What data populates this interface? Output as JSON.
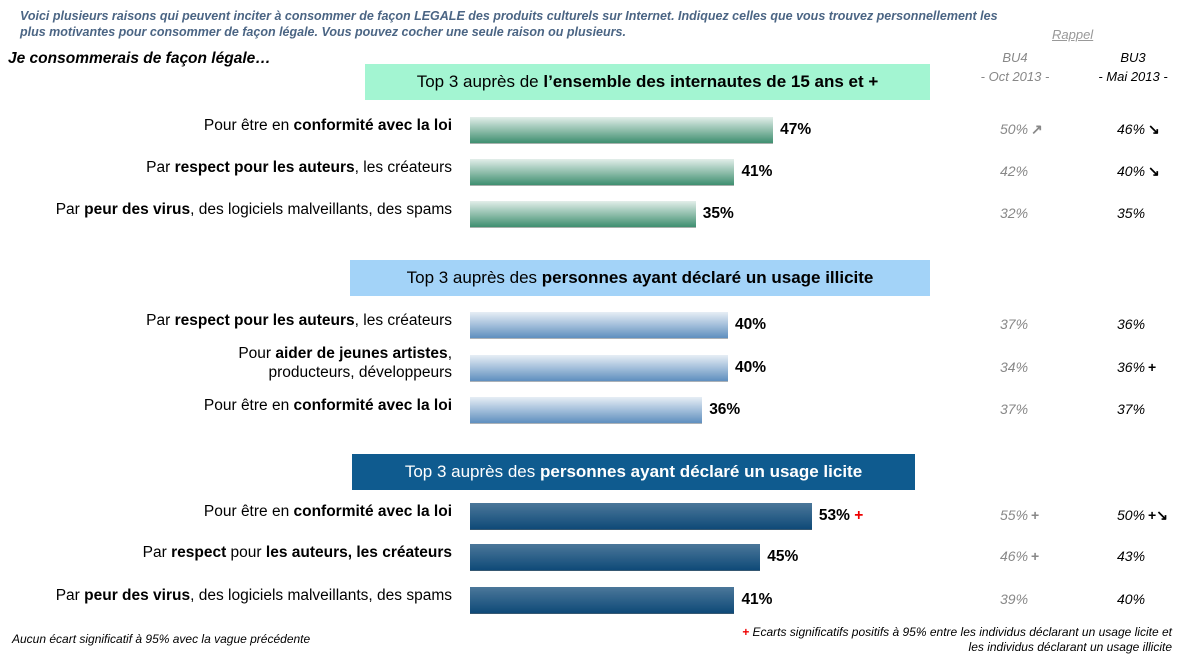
{
  "header": {
    "question": "Voici plusieurs raisons qui peuvent inciter à consommer de façon LEGALE des produits culturels sur Internet. Indiquez celles que vous trouvez personnellement les plus motivantes pour consommer de façon légale. Vous pouvez cocher une seule raison ou plusieurs.",
    "lead": "Je consommerais de façon légale…"
  },
  "recall": {
    "title": "Rappel",
    "bu4": [
      "BU4",
      "- Oct 2013 -"
    ],
    "bu3": [
      "BU3",
      "- Mai 2013 -"
    ]
  },
  "chart_data": [
    {
      "type": "bar",
      "title": [
        "Top 3 auprès de ",
        {
          "text": "l’ensemble des internautes de 15 ans et +",
          "bold": true
        }
      ],
      "title_color": "#a3f5d2",
      "color": "#3f8f70",
      "categories": [
        [
          "Pour être en ",
          {
            "text": "conformité avec la loi",
            "bold": true
          }
        ],
        [
          "Par ",
          {
            "text": "respect pour les auteurs",
            "bold": true
          },
          ", les créateurs"
        ],
        [
          "Par ",
          {
            "text": "peur des virus",
            "bold": true
          },
          ", des logiciels malveillants, des spams"
        ]
      ],
      "values": [
        47,
        41,
        35
      ],
      "value_labels": [
        "47%",
        "41%",
        "35%"
      ],
      "recall_rows": [
        {
          "bu4": "50%",
          "bu4_mark": "↗",
          "bu3": "46%",
          "bu3_mark": "↘"
        },
        {
          "bu4": "42%",
          "bu3": "40%",
          "bu3_mark": "↘"
        },
        {
          "bu4": "32%",
          "bu3": "35%"
        }
      ]
    },
    {
      "type": "bar",
      "title": [
        "Top 3 auprès des ",
        {
          "text": "personnes ayant déclaré un usage illicite",
          "bold": true
        }
      ],
      "title_color": "#a3d3f8",
      "color": "#5f8fbf",
      "categories": [
        [
          "Par ",
          {
            "text": "respect pour les auteurs",
            "bold": true
          },
          ", les créateurs"
        ],
        [
          "Pour ",
          {
            "text": "aider de jeunes artistes",
            "bold": true
          },
          ",\nproducteurs, développeurs"
        ],
        [
          "Pour être en ",
          {
            "text": "conformité avec la loi",
            "bold": true
          }
        ]
      ],
      "values": [
        40,
        40,
        36
      ],
      "value_labels": [
        "40%",
        "40%",
        "36%"
      ],
      "recall_rows": [
        {
          "bu4": "37%",
          "bu3": "36%"
        },
        {
          "bu4": "34%",
          "bu3": "36%",
          "bu3_mark": "+"
        },
        {
          "bu4": "37%",
          "bu3": "37%"
        }
      ]
    },
    {
      "type": "bar",
      "title": [
        "Top 3 auprès des ",
        {
          "text": "personnes ayant déclaré un usage licite",
          "bold": true
        }
      ],
      "title_color": "#0f5b8f",
      "color": "#0f4a78",
      "categories": [
        [
          "Pour être en ",
          {
            "text": "conformité avec la loi",
            "bold": true
          }
        ],
        [
          "Par ",
          {
            "text": "respect",
            "bold": true
          },
          " pour ",
          {
            "text": "les auteurs, les créateurs",
            "bold": true
          }
        ],
        [
          "Par ",
          {
            "text": "peur des virus",
            "bold": true
          },
          ", des logiciels malveillants, des spams"
        ]
      ],
      "values": [
        53,
        45,
        41
      ],
      "value_labels": [
        "53%",
        "45%",
        "41%"
      ],
      "value_flags": [
        "+",
        null,
        null
      ],
      "recall_rows": [
        {
          "bu4": "55%",
          "bu4_mark": "+",
          "bu3": "50%",
          "bu3_mark": "+↘"
        },
        {
          "bu4": "46%",
          "bu4_mark": "+",
          "bu3": "43%"
        },
        {
          "bu4": "39%",
          "bu3": "40%"
        }
      ]
    }
  ],
  "footer": {
    "left": "Aucun écart significatif à 95% avec la vague précédente",
    "mark": "+",
    "right": "Ecarts significatifs positifs à 95% entre les individus déclarant un usage licite et les individus déclarant un usage illicite"
  }
}
